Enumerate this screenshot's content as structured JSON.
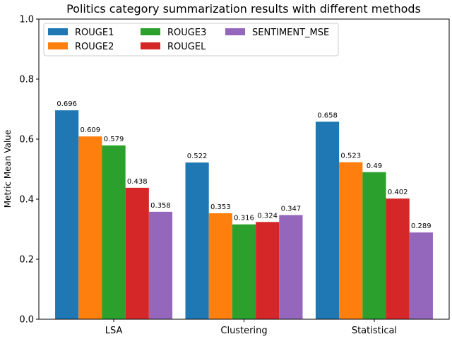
{
  "chart_data": {
    "type": "bar",
    "title": "Politics category summarization results with different methods",
    "xlabel": "",
    "ylabel": "Metric Mean Value",
    "ylim": [
      0,
      1.0
    ],
    "yticks": [
      "0.0",
      "0.2",
      "0.4",
      "0.6",
      "0.8",
      "1.0"
    ],
    "categories": [
      "LSA",
      "Clustering",
      "Statistical"
    ],
    "legend_position": "top-left",
    "grid": false,
    "series": [
      {
        "name": "ROUGE1",
        "color": "#1f77b4",
        "values": [
          0.696,
          0.522,
          0.658
        ],
        "labels": [
          "0.696",
          "0.522",
          "0.658"
        ]
      },
      {
        "name": "ROUGE2",
        "color": "#ff7f0e",
        "values": [
          0.609,
          0.353,
          0.523
        ],
        "labels": [
          "0.609",
          "0.353",
          "0.523"
        ]
      },
      {
        "name": "ROUGE3",
        "color": "#2ca02c",
        "values": [
          0.579,
          0.316,
          0.49
        ],
        "labels": [
          "0.579",
          "0.316",
          "0.49"
        ]
      },
      {
        "name": "ROUGEL",
        "color": "#d62728",
        "values": [
          0.438,
          0.324,
          0.402
        ],
        "labels": [
          "0.438",
          "0.324",
          "0.402"
        ]
      },
      {
        "name": "SENTIMENT_MSE",
        "color": "#9467bd",
        "values": [
          0.358,
          0.347,
          0.289
        ],
        "labels": [
          "0.358",
          "0.347",
          "0.289"
        ]
      }
    ]
  }
}
